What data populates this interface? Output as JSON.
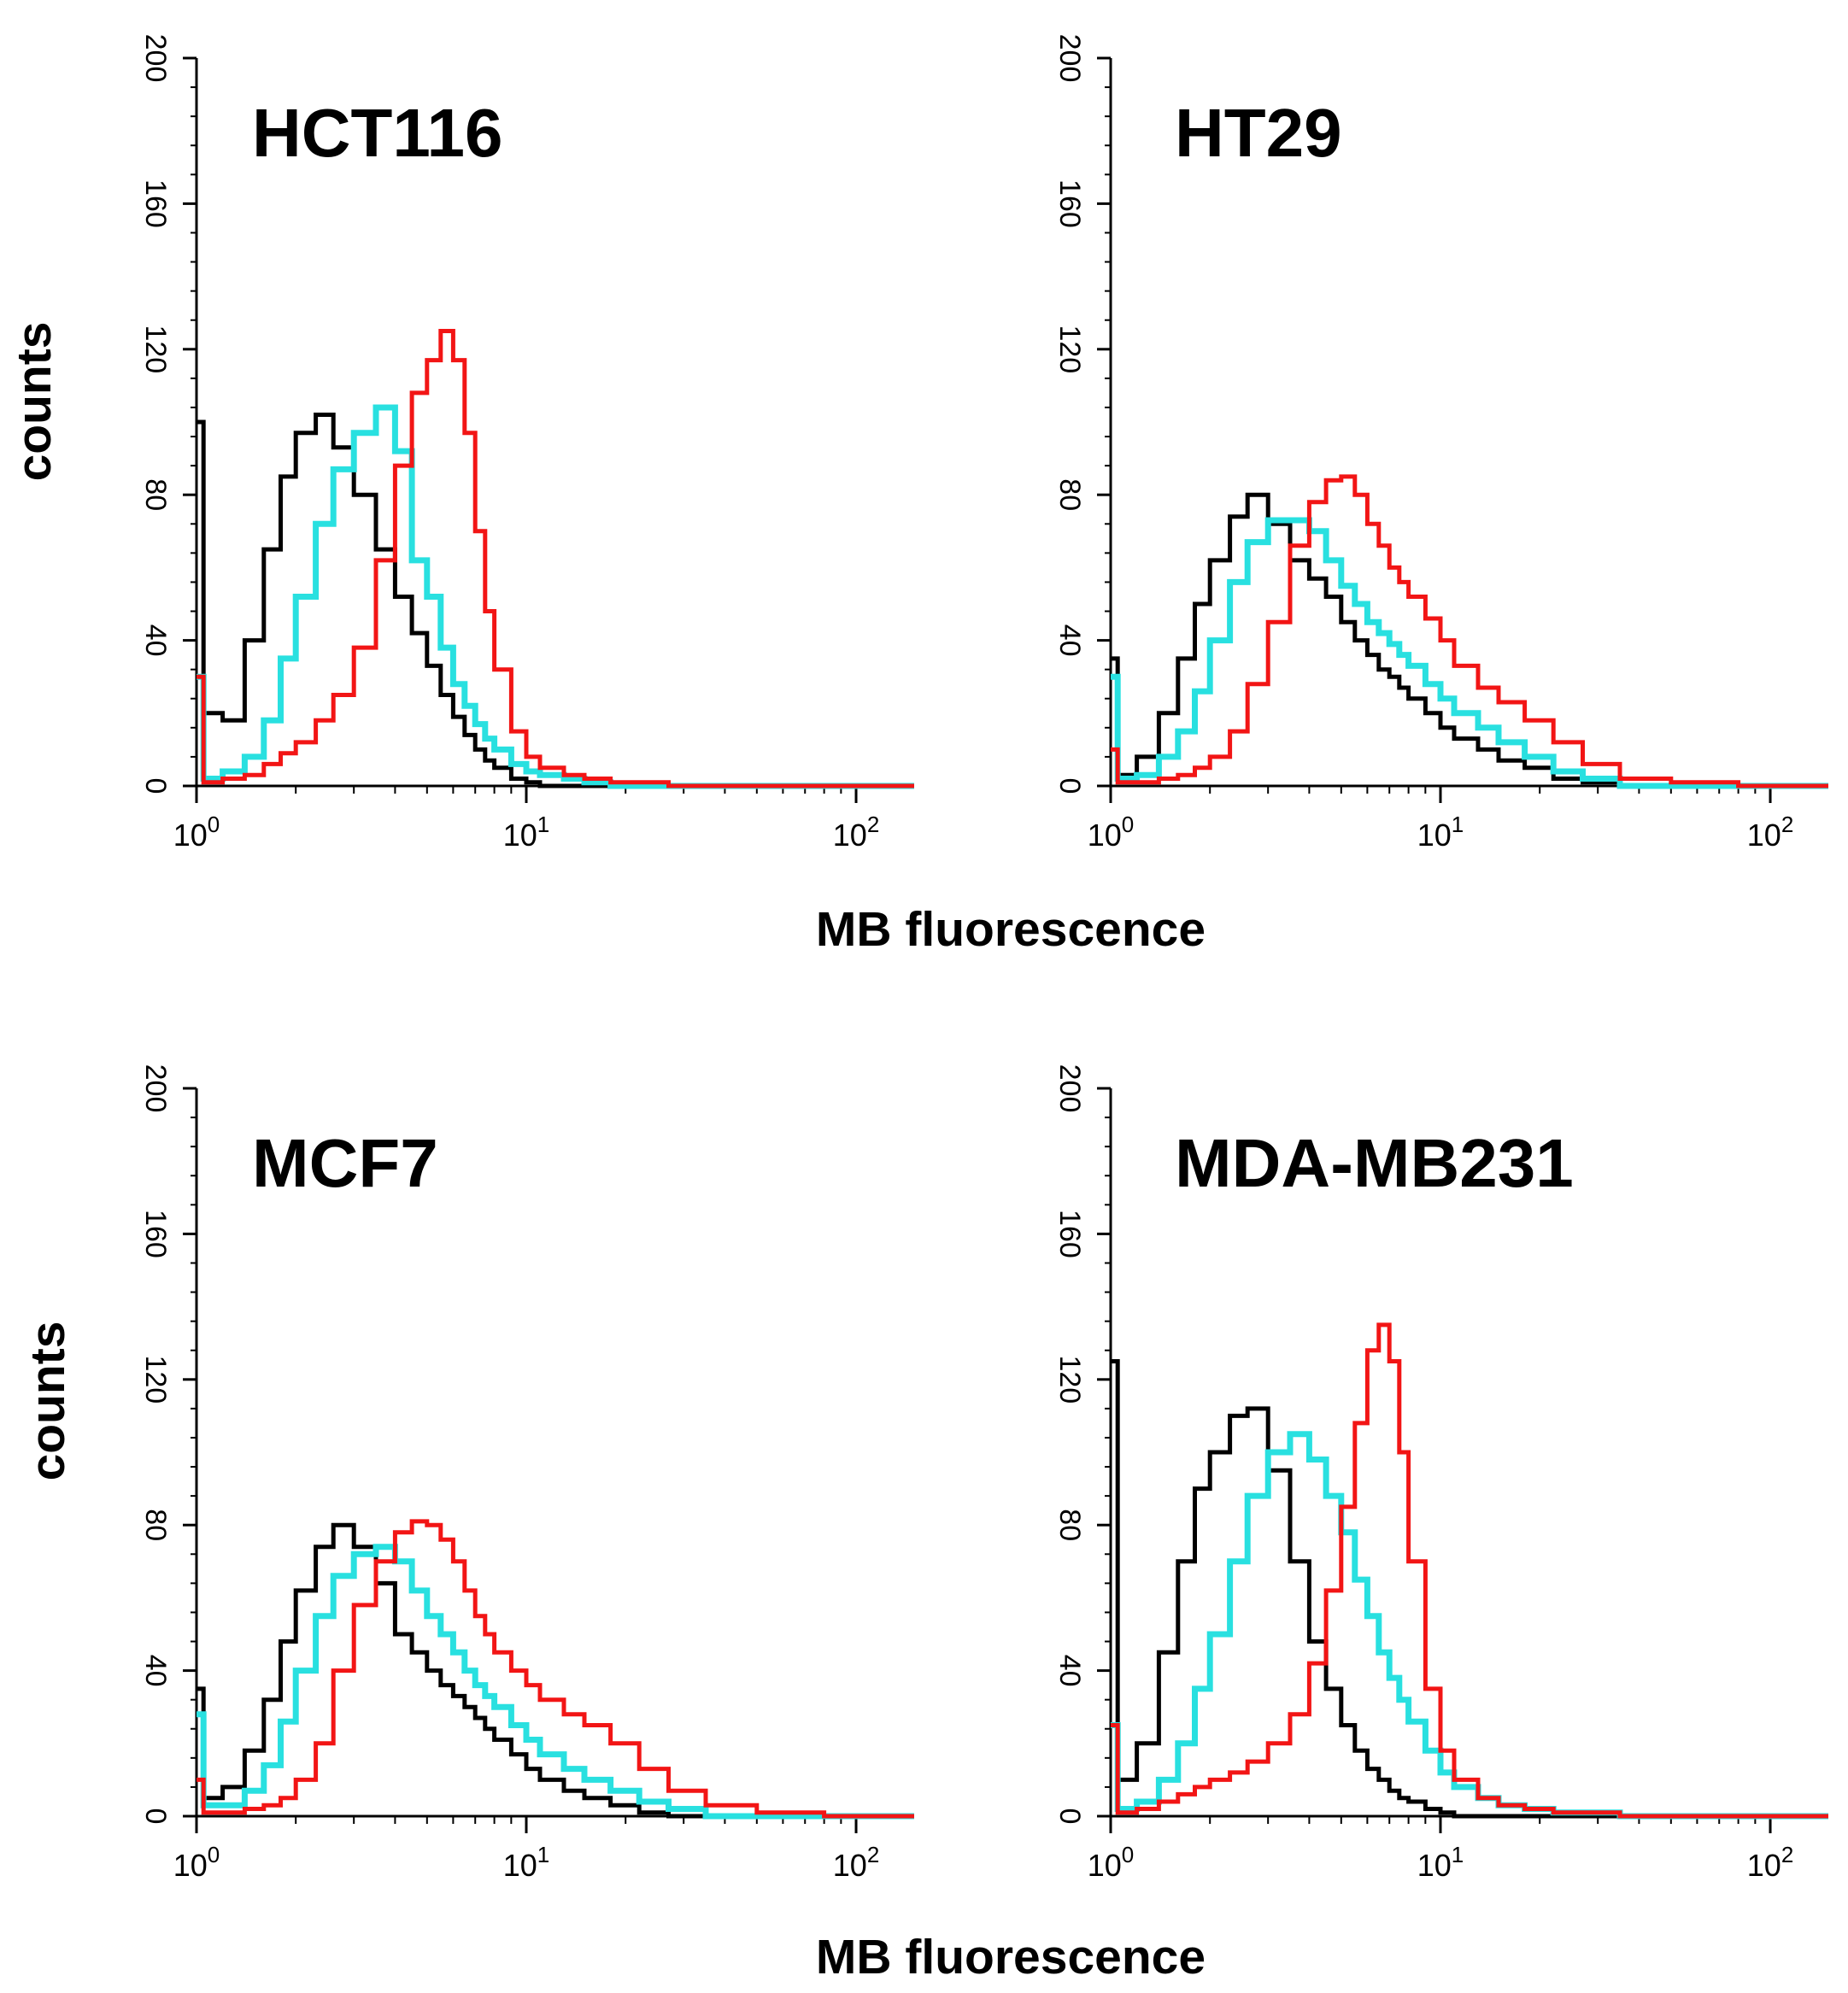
{
  "colors": {
    "control": "#000000",
    "treated_low": "#29e0e0",
    "treated_high": "#f21515",
    "axis": "#000000"
  },
  "labels": {
    "xlabel_top": "MB fluorescence",
    "xlabel_bottom": "MB fluorescence",
    "ylabel_top": "counts",
    "ylabel_bottom": "counts"
  },
  "chart_data": [
    {
      "type": "line",
      "title": "HCT116",
      "xscale": "log",
      "xlim": [
        1,
        150
      ],
      "ylim": [
        0,
        200
      ],
      "yticks": [
        0,
        40,
        80,
        120,
        160,
        200
      ],
      "xticks": [
        1,
        10,
        100
      ],
      "xtick_labels": [
        "10",
        "10",
        "10"
      ],
      "xtick_exponents": [
        "0",
        "1",
        "2"
      ],
      "x": [
        1.0,
        1.05,
        1.2,
        1.4,
        1.6,
        1.8,
        2.0,
        2.3,
        2.6,
        3.0,
        3.5,
        4.0,
        4.5,
        5.0,
        5.5,
        6.0,
        6.5,
        7.0,
        7.5,
        8.0,
        9.0,
        10.0,
        11.0,
        13.0,
        15.0,
        18.0,
        22.0,
        27.0,
        35.0,
        50.0,
        80.0,
        150.0
      ],
      "series": [
        {
          "name": "black",
          "values": [
            100,
            20,
            18,
            40,
            65,
            85,
            97,
            102,
            93,
            80,
            65,
            52,
            42,
            33,
            25,
            19,
            14,
            10,
            7,
            5,
            2,
            1,
            0,
            0,
            0,
            0,
            0,
            0,
            0,
            0,
            0,
            0
          ]
        },
        {
          "name": "cyan",
          "values": [
            30,
            2,
            4,
            8,
            18,
            35,
            52,
            72,
            87,
            97,
            104,
            92,
            62,
            52,
            38,
            28,
            22,
            17,
            13,
            10,
            6,
            4,
            3,
            2,
            1,
            0,
            0,
            0,
            0,
            0,
            0,
            0
          ]
        },
        {
          "name": "red",
          "values": [
            30,
            1,
            2,
            3,
            6,
            9,
            12,
            18,
            25,
            38,
            62,
            88,
            108,
            117,
            125,
            117,
            97,
            70,
            48,
            32,
            15,
            8,
            5,
            3,
            2,
            1,
            1,
            0,
            0,
            0,
            0,
            0
          ]
        }
      ]
    },
    {
      "type": "line",
      "title": "HT29",
      "xscale": "log",
      "xlim": [
        1,
        150
      ],
      "ylim": [
        0,
        200
      ],
      "yticks": [
        0,
        40,
        80,
        120,
        160,
        200
      ],
      "xticks": [
        1,
        10,
        100
      ],
      "xtick_labels": [
        "10",
        "10",
        "10"
      ],
      "xtick_exponents": [
        "0",
        "1",
        "2"
      ],
      "x": [
        1.0,
        1.05,
        1.2,
        1.4,
        1.6,
        1.8,
        2.0,
        2.3,
        2.6,
        3.0,
        3.5,
        4.0,
        4.5,
        5.0,
        5.5,
        6.0,
        6.5,
        7.0,
        7.5,
        8.0,
        9.0,
        10.0,
        11.0,
        13.0,
        15.0,
        18.0,
        22.0,
        27.0,
        35.0,
        50.0,
        80.0,
        150.0
      ],
      "series": [
        {
          "name": "black",
          "values": [
            35,
            3,
            8,
            20,
            35,
            50,
            62,
            74,
            80,
            72,
            62,
            57,
            52,
            45,
            40,
            36,
            32,
            30,
            27,
            24,
            20,
            16,
            13,
            10,
            7,
            5,
            2,
            1,
            0,
            0,
            0,
            0
          ]
        },
        {
          "name": "cyan",
          "values": [
            30,
            2,
            3,
            8,
            15,
            26,
            40,
            56,
            67,
            73,
            73,
            70,
            62,
            55,
            50,
            45,
            42,
            39,
            36,
            33,
            28,
            24,
            20,
            16,
            12,
            8,
            4,
            2,
            0,
            0,
            0,
            0
          ]
        },
        {
          "name": "red",
          "values": [
            10,
            1,
            1,
            2,
            3,
            5,
            8,
            15,
            28,
            45,
            66,
            78,
            84,
            85,
            80,
            72,
            66,
            60,
            56,
            52,
            46,
            40,
            33,
            27,
            23,
            18,
            12,
            6,
            2,
            1,
            0,
            0
          ]
        }
      ]
    },
    {
      "type": "line",
      "title": "MCF7",
      "xscale": "log",
      "xlim": [
        1,
        150
      ],
      "ylim": [
        0,
        200
      ],
      "yticks": [
        0,
        40,
        80,
        120,
        160,
        200
      ],
      "xticks": [
        1,
        10,
        100
      ],
      "xtick_labels": [
        "10",
        "10",
        "10"
      ],
      "xtick_exponents": [
        "0",
        "1",
        "2"
      ],
      "x": [
        1.0,
        1.05,
        1.2,
        1.4,
        1.6,
        1.8,
        2.0,
        2.3,
        2.6,
        3.0,
        3.5,
        4.0,
        4.5,
        5.0,
        5.5,
        6.0,
        6.5,
        7.0,
        7.5,
        8.0,
        9.0,
        10.0,
        11.0,
        13.0,
        15.0,
        18.0,
        22.0,
        27.0,
        35.0,
        50.0,
        80.0,
        150.0
      ],
      "series": [
        {
          "name": "black",
          "values": [
            35,
            5,
            8,
            18,
            32,
            48,
            62,
            74,
            80,
            74,
            64,
            50,
            45,
            40,
            36,
            33,
            30,
            27,
            24,
            21,
            17,
            13,
            10,
            7,
            5,
            3,
            1,
            0,
            0,
            0,
            0,
            0
          ]
        },
        {
          "name": "cyan",
          "values": [
            28,
            3,
            3,
            7,
            14,
            26,
            40,
            55,
            66,
            72,
            74,
            70,
            62,
            55,
            50,
            45,
            40,
            36,
            33,
            30,
            25,
            21,
            17,
            13,
            10,
            7,
            4,
            2,
            0,
            0,
            0,
            0
          ]
        },
        {
          "name": "red",
          "values": [
            10,
            1,
            1,
            2,
            3,
            5,
            10,
            20,
            40,
            58,
            70,
            78,
            81,
            80,
            76,
            70,
            62,
            55,
            50,
            45,
            40,
            36,
            32,
            28,
            25,
            20,
            13,
            7,
            3,
            1,
            0,
            0
          ]
        }
      ]
    },
    {
      "type": "line",
      "title": "MDA-MB231",
      "xscale": "log",
      "xlim": [
        1,
        150
      ],
      "ylim": [
        0,
        200
      ],
      "yticks": [
        0,
        40,
        80,
        120,
        160,
        200
      ],
      "xticks": [
        1,
        10,
        100
      ],
      "xtick_labels": [
        "10",
        "10",
        "10"
      ],
      "xtick_exponents": [
        "0",
        "1",
        "2"
      ],
      "x": [
        1.0,
        1.05,
        1.2,
        1.4,
        1.6,
        1.8,
        2.0,
        2.3,
        2.6,
        3.0,
        3.5,
        4.0,
        4.5,
        5.0,
        5.5,
        6.0,
        6.5,
        7.0,
        7.5,
        8.0,
        9.0,
        10.0,
        11.0,
        13.0,
        15.0,
        18.0,
        22.0,
        27.0,
        35.0,
        50.0,
        80.0,
        150.0
      ],
      "series": [
        {
          "name": "black",
          "values": [
            125,
            10,
            20,
            45,
            70,
            90,
            100,
            110,
            112,
            95,
            70,
            48,
            35,
            25,
            18,
            13,
            10,
            7,
            5,
            4,
            2,
            1,
            0,
            0,
            0,
            0,
            0,
            0,
            0,
            0,
            0,
            0
          ]
        },
        {
          "name": "cyan",
          "values": [
            25,
            2,
            4,
            10,
            20,
            35,
            50,
            70,
            88,
            100,
            105,
            98,
            88,
            78,
            65,
            55,
            45,
            38,
            32,
            26,
            18,
            12,
            8,
            5,
            3,
            2,
            1,
            1,
            0,
            0,
            0,
            0
          ]
        },
        {
          "name": "red",
          "values": [
            25,
            1,
            2,
            4,
            6,
            8,
            10,
            12,
            15,
            20,
            28,
            42,
            62,
            85,
            108,
            128,
            135,
            125,
            100,
            70,
            35,
            18,
            10,
            5,
            3,
            2,
            1,
            1,
            0,
            0,
            0,
            0
          ]
        }
      ]
    }
  ]
}
